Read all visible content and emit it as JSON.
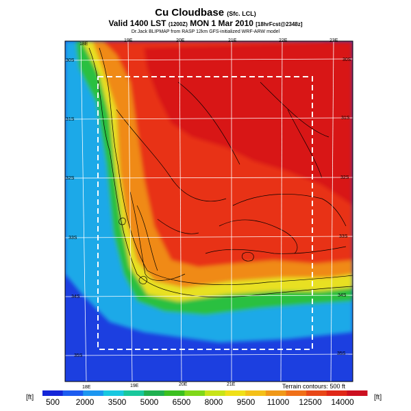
{
  "header": {
    "title": "Cu Cloudbase",
    "title_qualifier": "(Sfc. LCL)",
    "valid_prefix": "Valid 1400 LST",
    "valid_z": "(1200Z)",
    "valid_date": "MON 1 Mar 2010",
    "valid_forecast": "[18hrFcst@2348z]",
    "credit": "Dr.Jack BLIPMAP from RASP 12km GFS-initialized WRF-ARW model"
  },
  "map": {
    "terrain_note": "Terrain contours: 500 ft",
    "lon_labels_top": [
      "18E",
      "19E",
      "20E",
      "21E",
      "22E",
      "23E"
    ],
    "lon_labels_bottom": [
      "18E",
      "19E",
      "20E",
      "21E"
    ],
    "lat_labels_right": [
      "30S",
      "31S",
      "32S",
      "33S",
      "34S",
      "35S"
    ],
    "lat_labels_left": [
      "30S",
      "31S",
      "32S",
      "33S",
      "34S",
      "35S"
    ],
    "colors": {
      "ocean": "#1c3fe0",
      "coast": "#1aa9e8",
      "lowland_green": "#2cc040",
      "yellow": "#e8e020",
      "orange": "#f08a18",
      "red": "#e83018",
      "deep_red": "#d81818"
    }
  },
  "colorbar": {
    "unit_left": "[ft]",
    "unit_right": "[ft]",
    "labels": [
      "500",
      "2000",
      "3500",
      "5000",
      "6500",
      "8000",
      "9500",
      "11000",
      "12500",
      "14000"
    ],
    "colors": [
      "#1426d8",
      "#1c5cf0",
      "#1c96f0",
      "#18c8e0",
      "#18c89c",
      "#20b050",
      "#3cc020",
      "#80d818",
      "#c8e418",
      "#f0e018",
      "#f4c018",
      "#f09818",
      "#f07018",
      "#e84818",
      "#e02818",
      "#cc1020"
    ]
  }
}
